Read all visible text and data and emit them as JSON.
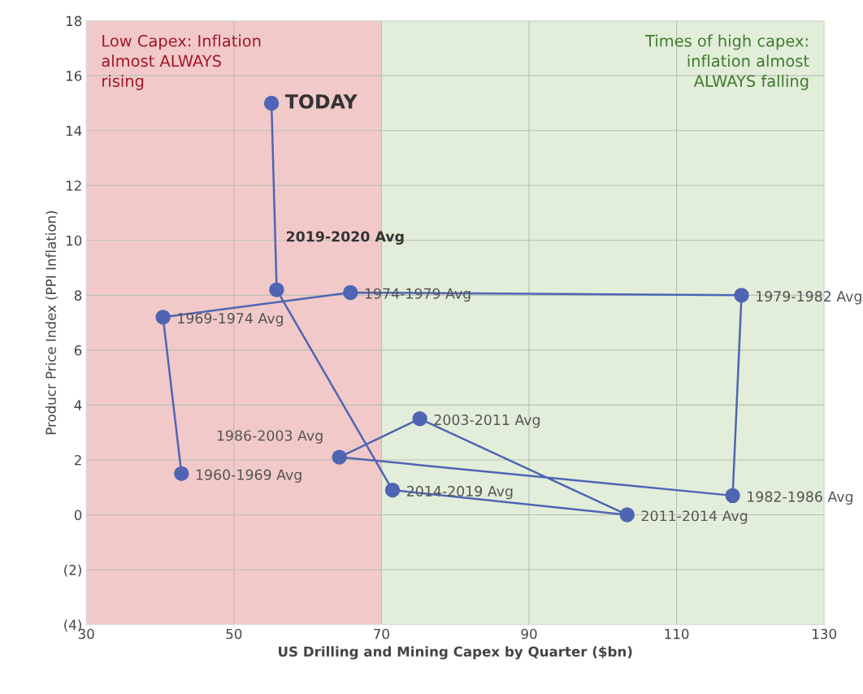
{
  "chart_data": {
    "type": "line",
    "xlabel": "US Drilling and Mining Capex by Quarter ($bn)",
    "ylabel": "Producr Price Index (PPI Inflation)",
    "xlim": [
      30,
      130
    ],
    "xticks": [
      30,
      50,
      70,
      90,
      110,
      130
    ],
    "ylim": [
      -4,
      18
    ],
    "yticks": [
      {
        "value": -4,
        "label": "(4)"
      },
      {
        "value": -2,
        "label": "(2)"
      },
      0,
      2,
      4,
      6,
      8,
      10,
      12,
      14,
      16,
      18
    ],
    "grid": true,
    "marker": "circle",
    "line_style": "solid",
    "bands": [
      {
        "axis": "x",
        "from": 30,
        "to": 70,
        "label": "Low Capex: Inflation\nalmost ALWAYS\nrising",
        "color": "#f2c9c9"
      },
      {
        "axis": "x",
        "from": 70,
        "to": 130,
        "label": "Times of high capex:\ninflation almost\nALWAYS falling",
        "color": "#e2eed9"
      }
    ],
    "series": [
      {
        "color": "#4f65b4",
        "x": [
          42.9,
          40.4,
          65.8,
          118.8,
          117.6,
          64.3,
          75.2,
          103.3,
          71.5,
          55.8,
          55.1
        ],
        "values": [
          1.5,
          7.2,
          8.1,
          8.0,
          0.7,
          2.1,
          3.5,
          0.0,
          0.9,
          8.2,
          15.0
        ],
        "value_labels": [
          "1960-1969 Avg",
          "1969-1974 Avg",
          "1974-1979 Avg",
          "1979-1982 Avg",
          "1982-1986 Avg",
          "1986-2003 Avg",
          "2003-2011 Avg",
          "2011-2014 Avg",
          "2014-2019 Avg",
          "2019-2020 Avg",
          "TODAY"
        ]
      }
    ]
  }
}
